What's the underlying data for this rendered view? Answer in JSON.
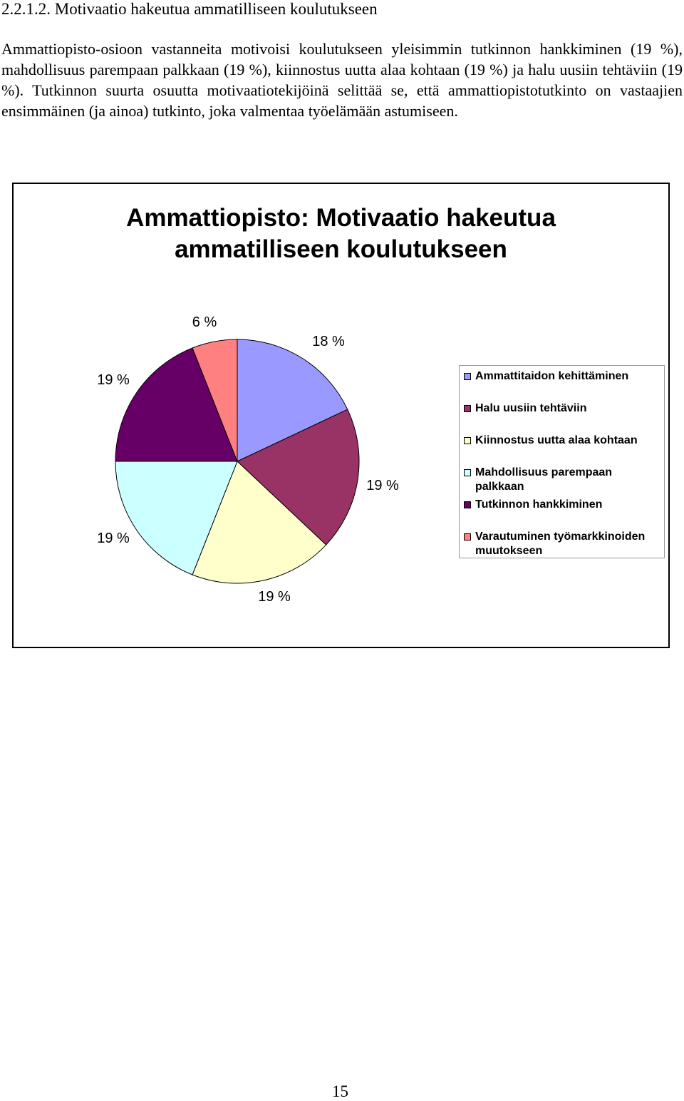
{
  "heading": "2.2.1.2. Motivaatio hakeutua ammatilliseen koulutukseen",
  "paragraph": "Ammattiopisto-osioon vastanneita motivoisi koulutukseen yleisimmin tutkinnon hankkiminen (19 %), mahdollisuus parempaan palkkaan (19 %), kiinnostus uutta alaa kohtaan (19 %) ja halu uusiin tehtäviin (19 %). Tutkinnon suurta osuutta motivaatiotekijöinä selittää se, että ammattiopistotutkinto on vastaajien ensimmäinen (ja ainoa) tutkinto, joka valmentaa työelämään astumiseen.",
  "page_number": "15",
  "chart_data": {
    "type": "pie",
    "title_lines": [
      "Ammattiopisto: Motivaatio hakeutua",
      "ammatilliseen koulutukseen"
    ],
    "start_angle": "12 o'clock, clockwise",
    "legend_position": "right",
    "slices": [
      {
        "label": "Ammattitaidon kehittäminen",
        "value": 18,
        "value_label": "18 %",
        "color": "#9999ff"
      },
      {
        "label": "Halu uusiin tehtäviin",
        "value": 19,
        "value_label": "19 %",
        "color": "#993366"
      },
      {
        "label": "Kiinnostus uutta alaa kohtaan",
        "value": 19,
        "value_label": "19 %",
        "color": "#ffffcc"
      },
      {
        "label": "Mahdollisuus parempaan palkkaan",
        "value": 19,
        "value_label": "19 %",
        "color": "#ccffff"
      },
      {
        "label": "Tutkinnon hankkiminen",
        "value": 19,
        "value_label": "19 %",
        "color": "#660066"
      },
      {
        "label": "Varautuminen työmarkkinoiden muutokseen",
        "value": 6,
        "value_label": "6 %",
        "color": "#ff8080"
      }
    ]
  }
}
